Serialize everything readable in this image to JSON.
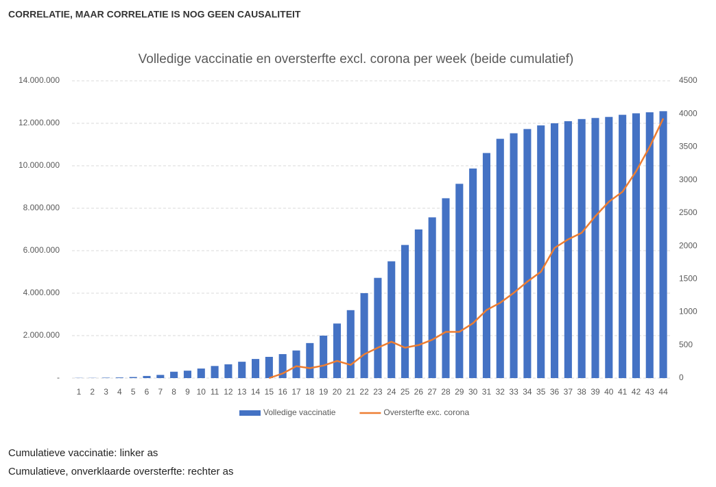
{
  "header": {
    "title": "CORRELATIE, MAAR CORRELATIE IS NOG GEEN CAUSALITEIT"
  },
  "chart_data": {
    "type": "bar",
    "title": "Volledige vaccinatie en oversterfte excl. corona per week (beide cumulatief)",
    "categories": [
      "1",
      "2",
      "3",
      "4",
      "5",
      "6",
      "7",
      "8",
      "9",
      "10",
      "11",
      "12",
      "13",
      "14",
      "15",
      "16",
      "17",
      "18",
      "19",
      "20",
      "21",
      "22",
      "23",
      "24",
      "25",
      "26",
      "27",
      "28",
      "29",
      "30",
      "31",
      "32",
      "33",
      "34",
      "35",
      "36",
      "37",
      "38",
      "39",
      "40",
      "41",
      "42",
      "43",
      "44"
    ],
    "series": [
      {
        "name": "Volledige vaccinatie",
        "type": "bar",
        "color": "#4472c4",
        "values": [
          10000,
          10000,
          20000,
          30000,
          50000,
          100000,
          150000,
          300000,
          350000,
          450000,
          570000,
          650000,
          770000,
          900000,
          1000000,
          1130000,
          1300000,
          1650000,
          2000000,
          2570000,
          3200000,
          4000000,
          4720000,
          5500000,
          6270000,
          7000000,
          7570000,
          8470000,
          9150000,
          9870000,
          10600000,
          11270000,
          11530000,
          11730000,
          11900000,
          12000000,
          12100000,
          12200000,
          12250000,
          12300000,
          12400000,
          12470000,
          12520000,
          12570000
        ]
      },
      {
        "name": "Oversterfte exc. corona",
        "type": "line",
        "axis": "y2",
        "color": "#ed7d31",
        "values": [
          null,
          null,
          null,
          null,
          null,
          null,
          null,
          null,
          null,
          null,
          null,
          null,
          null,
          null,
          0,
          70,
          180,
          150,
          190,
          260,
          200,
          360,
          460,
          550,
          460,
          500,
          580,
          700,
          700,
          830,
          1030,
          1140,
          1290,
          1460,
          1610,
          1970,
          2100,
          2200,
          2450,
          2670,
          2820,
          3130,
          3500,
          3930
        ]
      }
    ],
    "ylim": [
      0,
      14000000
    ],
    "yticks": [
      {
        "value": 0,
        "label": "-"
      },
      {
        "value": 2000000,
        "label": "2.000.000"
      },
      {
        "value": 4000000,
        "label": "4.000.000"
      },
      {
        "value": 6000000,
        "label": "6.000.000"
      },
      {
        "value": 8000000,
        "label": "8.000.000"
      },
      {
        "value": 10000000,
        "label": "10.000.000"
      },
      {
        "value": 12000000,
        "label": "12.000.000"
      },
      {
        "value": 14000000,
        "label": "14.000.000"
      }
    ],
    "y2lim": [
      0,
      4500
    ],
    "y2ticks": [
      0,
      500,
      1000,
      1500,
      2000,
      2500,
      3000,
      3500,
      4000,
      4500
    ],
    "grid": true,
    "legend": "bottom"
  },
  "notes": [
    "Cumulatieve vaccinatie: linker as",
    "Cumulatieve, onverklaarde oversterfte: rechter as"
  ]
}
